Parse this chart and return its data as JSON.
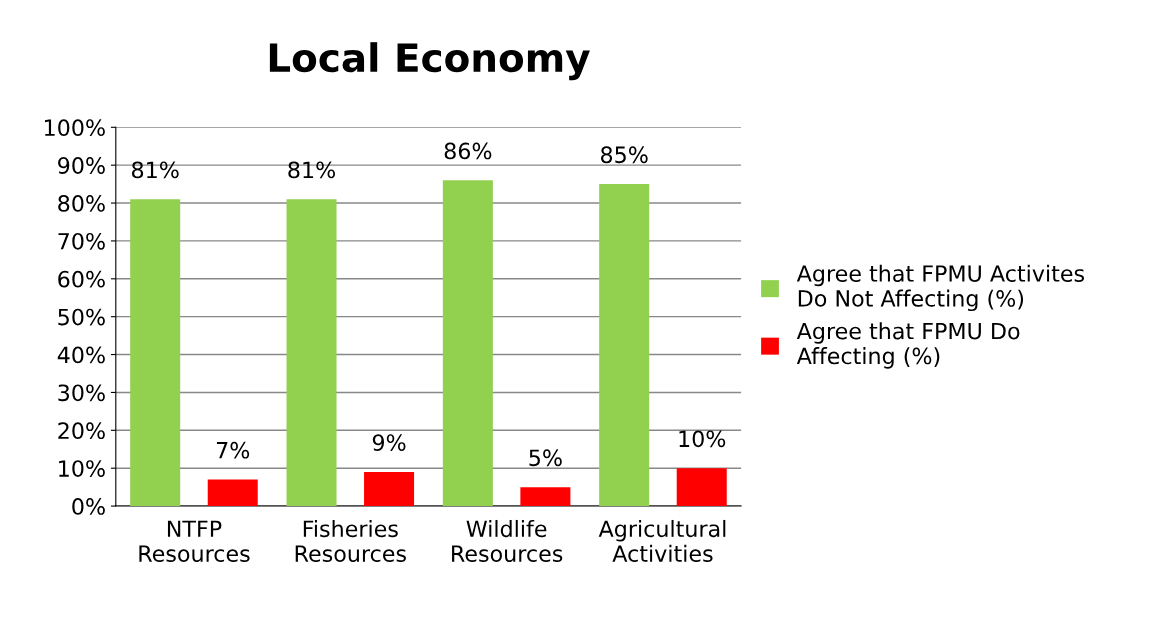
{
  "chart_data": {
    "type": "bar",
    "title": "Local Economy",
    "categories": [
      "NTFP\nResources",
      "Fisheries\nResources",
      "Wildlife\nResources",
      "Agricultural\nActivities"
    ],
    "series": [
      {
        "name": "Agree that FPMU Activites\nDo Not Affecting (%)",
        "color": "#92d050",
        "values": [
          81,
          81,
          86,
          85
        ],
        "value_labels": [
          "81%",
          "81%",
          "86%",
          "85%"
        ]
      },
      {
        "name": "Agree that FPMU Do\nAffecting (%)",
        "color": "#ff0000",
        "values": [
          7,
          9,
          5,
          10
        ],
        "value_labels": [
          "7%",
          "9%",
          "5%",
          "10%"
        ]
      }
    ],
    "ylim": [
      0,
      100
    ],
    "yticks": [
      {
        "value": 0,
        "label": "0%"
      },
      {
        "value": 10,
        "label": "10%"
      },
      {
        "value": 20,
        "label": "20%"
      },
      {
        "value": 30,
        "label": "30%"
      },
      {
        "value": 40,
        "label": "40%"
      },
      {
        "value": 50,
        "label": "50%"
      },
      {
        "value": 60,
        "label": "60%"
      },
      {
        "value": 70,
        "label": "70%"
      },
      {
        "value": 80,
        "label": "80%"
      },
      {
        "value": 90,
        "label": "90%"
      },
      {
        "value": 100,
        "label": "100%"
      }
    ],
    "grid": "y",
    "legend": "right"
  }
}
